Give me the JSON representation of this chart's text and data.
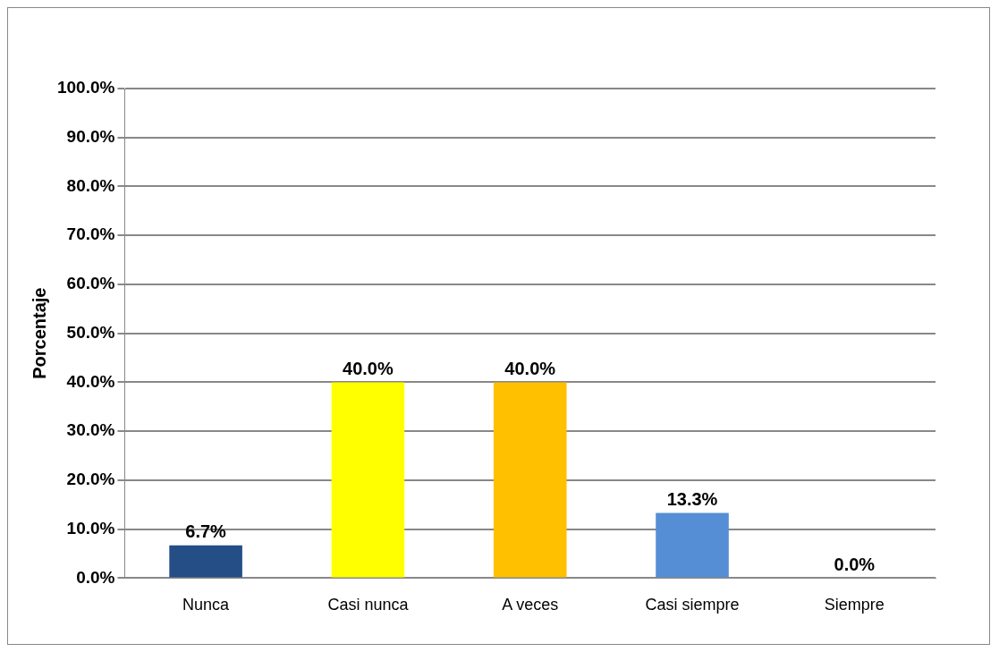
{
  "chart_data": {
    "type": "bar",
    "ylabel": "Porcentaje",
    "categories": [
      "Nunca",
      "Casi nunca",
      "A veces",
      "Casi siempre",
      "Siempre"
    ],
    "values": [
      6.7,
      40.0,
      40.0,
      13.3,
      0.0
    ],
    "colors": [
      "#254e86",
      "#ffff00",
      "#ffc000",
      "#558ed5",
      "#953735"
    ],
    "value_labels": [
      "6.7%",
      "40.0%",
      "40.0%",
      "13.3%",
      "0.0%"
    ],
    "ylim": [
      0,
      100
    ],
    "yticks": [
      {
        "value": 0,
        "label": "0.0%"
      },
      {
        "value": 10,
        "label": "10.0%"
      },
      {
        "value": 20,
        "label": "20.0%"
      },
      {
        "value": 30,
        "label": "30.0%"
      },
      {
        "value": 40,
        "label": "40.0%"
      },
      {
        "value": 50,
        "label": "50.0%"
      },
      {
        "value": 60,
        "label": "60.0%"
      },
      {
        "value": 70,
        "label": "70.0%"
      },
      {
        "value": 80,
        "label": "80.0%"
      },
      {
        "value": 90,
        "label": "90.0%"
      },
      {
        "value": 100,
        "label": "100.0%"
      }
    ],
    "grid": "y",
    "legend": false
  }
}
